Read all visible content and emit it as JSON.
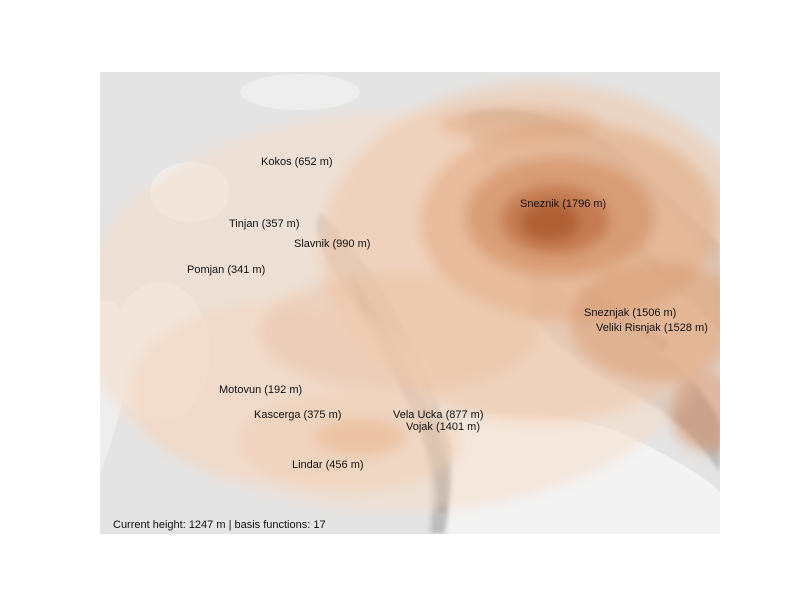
{
  "map": {
    "peaks": [
      {
        "name": "Kokos (652 m)"
      },
      {
        "name": "Sneznik (1796 m)"
      },
      {
        "name": "Tinjan (357 m)"
      },
      {
        "name": "Slavnik (990 m)"
      },
      {
        "name": "Pomjan (341 m)"
      },
      {
        "name": "Sneznjak (1506 m)"
      },
      {
        "name": "Veliki Risnjak (1528 m)"
      },
      {
        "name": "Motovun (192 m)"
      },
      {
        "name": "Kascerga (375 m)"
      },
      {
        "name": "Vela Ucka (877 m)"
      },
      {
        "name": "Vojak (1401 m)"
      },
      {
        "name": "Lindar (456 m)"
      }
    ],
    "colors": {
      "background": "#ffffff",
      "terrain_light": "#e6e6e6",
      "terrain_mid": "#c9c9c9",
      "terrain_dark": "#8f8f8f",
      "overlay_light": "#f6dcc8",
      "overlay_mid": "#d9a27a",
      "overlay_dark": "#a8552a"
    }
  },
  "status": {
    "text": "Current height: 1247 m | basis functions: 17"
  }
}
